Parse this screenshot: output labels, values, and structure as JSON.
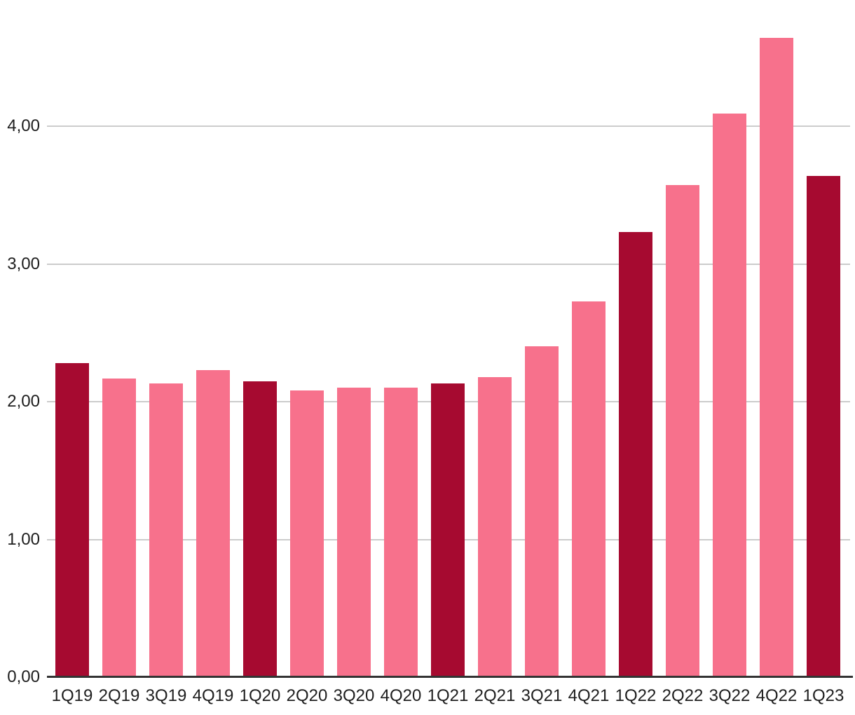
{
  "chart_data": {
    "type": "bar",
    "title": "",
    "categories": [
      "1Q19",
      "2Q19",
      "3Q19",
      "4Q19",
      "1Q20",
      "2Q20",
      "3Q20",
      "4Q20",
      "1Q21",
      "2Q21",
      "3Q21",
      "4Q21",
      "1Q22",
      "2Q22",
      "3Q22",
      "4Q22",
      "1Q23"
    ],
    "values": [
      2.28,
      2.17,
      2.13,
      2.23,
      2.15,
      2.08,
      2.1,
      2.1,
      2.13,
      2.18,
      2.4,
      2.73,
      3.23,
      3.57,
      4.09,
      4.64,
      3.64
    ],
    "bar_styles": [
      "highlight",
      "normal",
      "normal",
      "normal",
      "highlight",
      "normal",
      "normal",
      "normal",
      "highlight",
      "normal",
      "normal",
      "normal",
      "highlight",
      "normal",
      "normal",
      "normal",
      "highlight"
    ],
    "y_ticks": [
      {
        "value": 0,
        "label": "0,00"
      },
      {
        "value": 1,
        "label": "1,00"
      },
      {
        "value": 2,
        "label": "2,00"
      },
      {
        "value": 3,
        "label": "3,00"
      },
      {
        "value": 4,
        "label": "4,00"
      }
    ],
    "ylim": [
      0,
      4.92
    ],
    "xlabel": "",
    "ylabel": "",
    "grid": true,
    "colors": {
      "highlight": "#a60a30",
      "normal": "#f7718c",
      "gridline": "#cccccc",
      "axis_line": "#333333",
      "label_text": "#1f1f1f"
    }
  }
}
